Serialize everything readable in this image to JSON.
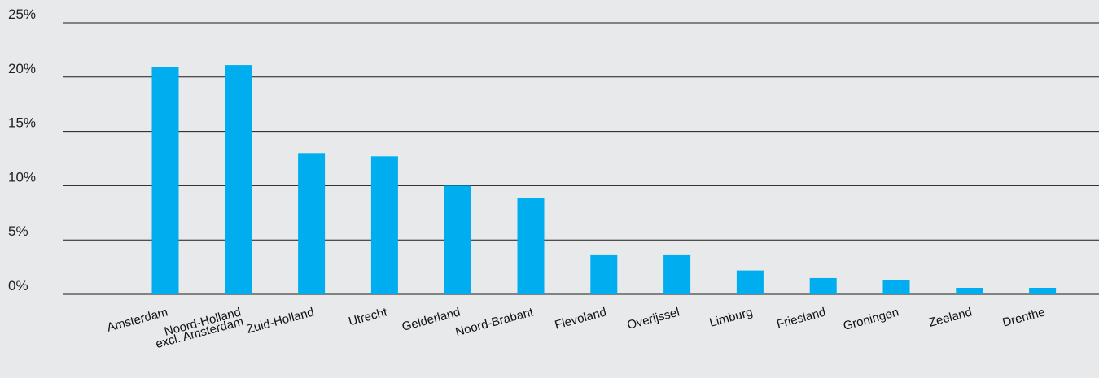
{
  "chart_data": {
    "type": "bar",
    "title": "",
    "xlabel": "",
    "ylabel": "",
    "ylim": [
      0,
      25
    ],
    "yticks": [
      "0%",
      "5%",
      "10%",
      "15%",
      "20%",
      "25%"
    ],
    "grid": true,
    "categories": [
      [
        "Amsterdam"
      ],
      [
        "Noord-Holland",
        "excl. Amsterdam"
      ],
      [
        "Zuid-Holland"
      ],
      [
        "Utrecht"
      ],
      [
        "Gelderland"
      ],
      [
        "Noord-Brabant"
      ],
      [
        "Flevoland"
      ],
      [
        "Overijssel"
      ],
      [
        "Limburg"
      ],
      [
        "Friesland"
      ],
      [
        "Groningen"
      ],
      [
        "Zeeland"
      ],
      [
        "Drenthe"
      ]
    ],
    "values": [
      20.9,
      21.1,
      13.0,
      12.7,
      10.0,
      8.9,
      3.6,
      3.6,
      2.2,
      1.5,
      1.3,
      0.6,
      0.6
    ],
    "bar_color": "#00adef"
  }
}
